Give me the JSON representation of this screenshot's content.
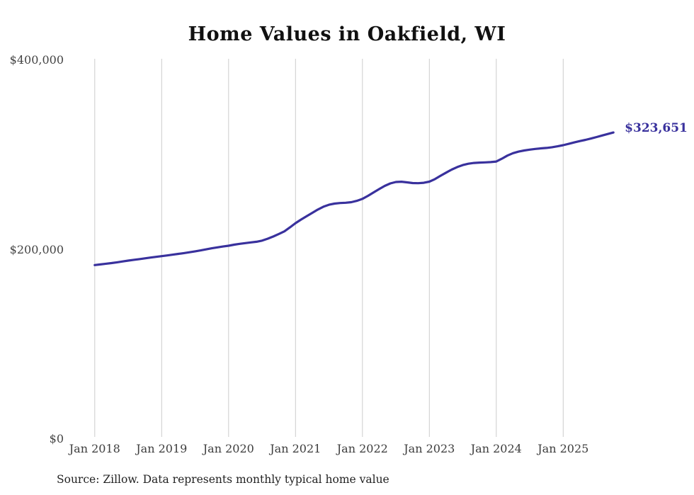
{
  "title": "Home Values in Oakfield, WI",
  "source_note": "Source: Zillow. Data represents monthly typical home value",
  "colors": {
    "line": "#39319d",
    "end_label": "#39319d",
    "gridline": "#cccccc",
    "title": "#111111",
    "axis_text": "#3d3d3d"
  },
  "chart_data": {
    "type": "line",
    "title": "Home Values in Oakfield, WI",
    "xlabel": "",
    "ylabel": "",
    "ylim": [
      0,
      400000
    ],
    "grid": "vertical-only",
    "legend": "none",
    "x_tick_labels": [
      "Jan 2018",
      "Jan 2019",
      "Jan 2020",
      "Jan 2021",
      "Jan 2022",
      "Jan 2023",
      "Jan 2024",
      "Jan 2025"
    ],
    "y_ticks": [
      {
        "value": 0,
        "label": "$0"
      },
      {
        "value": 200000,
        "label": "$200,000"
      },
      {
        "value": 400000,
        "label": "$400,000"
      }
    ],
    "end_label": "$323,651",
    "last_value": 323651,
    "series": [
      {
        "name": "Typical home value",
        "start_month": "Jan 2018",
        "frequency": "monthly",
        "values": [
          183700,
          184400,
          185100,
          185800,
          186600,
          187500,
          188400,
          189200,
          190000,
          190800,
          191600,
          192400,
          193100,
          193900,
          194700,
          195500,
          196300,
          197200,
          198200,
          199200,
          200300,
          201400,
          202400,
          203300,
          204100,
          205200,
          206100,
          206900,
          207600,
          208300,
          209500,
          211500,
          213800,
          216500,
          219300,
          223500,
          228000,
          231800,
          235300,
          238800,
          242300,
          245300,
          247400,
          248600,
          249200,
          249500,
          250100,
          251500,
          253600,
          256800,
          260400,
          263900,
          267300,
          269900,
          271400,
          271700,
          271000,
          270300,
          270100,
          270600,
          271800,
          274500,
          277900,
          281300,
          284500,
          287200,
          289300,
          290700,
          291500,
          291900,
          292100,
          292400,
          293000,
          296000,
          299300,
          301800,
          303500,
          304700,
          305600,
          306300,
          306900,
          307400,
          308100,
          309100,
          310300,
          311700,
          313200,
          314600,
          315900,
          317300,
          318900,
          320500,
          322100,
          323651
        ]
      }
    ]
  }
}
